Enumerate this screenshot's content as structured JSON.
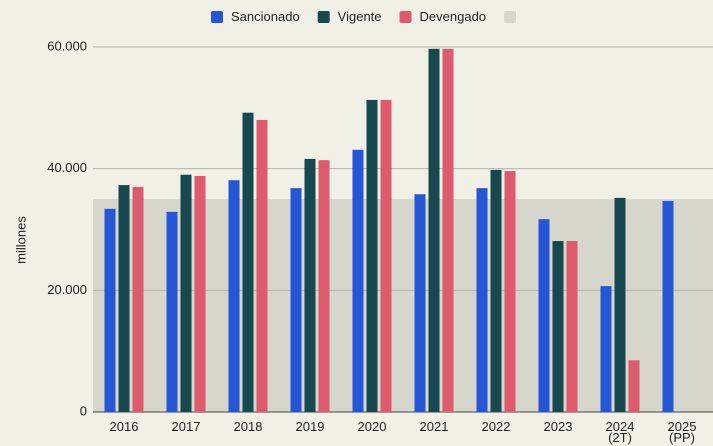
{
  "chart_data": {
    "type": "bar",
    "y_label": "millones",
    "categories": [
      "2016",
      "2017",
      "2018",
      "2019",
      "2020",
      "2021",
      "2022",
      "2023",
      "2024\n(2T)",
      "2025\n(PP)"
    ],
    "series": [
      {
        "name": "Sancionado",
        "color": "#2456d6",
        "values": [
          33400,
          32900,
          38100,
          36800,
          43100,
          35800,
          36800,
          31700,
          20700,
          34700
        ]
      },
      {
        "name": "Vigente",
        "color": "#17474f",
        "values": [
          37300,
          39000,
          49200,
          41600,
          51300,
          59700,
          39800,
          28100,
          35200,
          null
        ]
      },
      {
        "name": "Devengado",
        "color": "#dd5b6c",
        "values": [
          37000,
          38800,
          48000,
          41400,
          51300,
          59700,
          39600,
          28100,
          8500,
          null
        ]
      }
    ],
    "band": {
      "value": 35000,
      "color": "#d7d6cd"
    },
    "ylim": [
      0,
      60000
    ],
    "yticks": [
      0,
      {
        "value": 20000,
        "label": "20.000"
      },
      {
        "value": 40000,
        "label": "40.000"
      },
      {
        "value": 60000,
        "label": "60.000"
      }
    ],
    "grid": true
  }
}
